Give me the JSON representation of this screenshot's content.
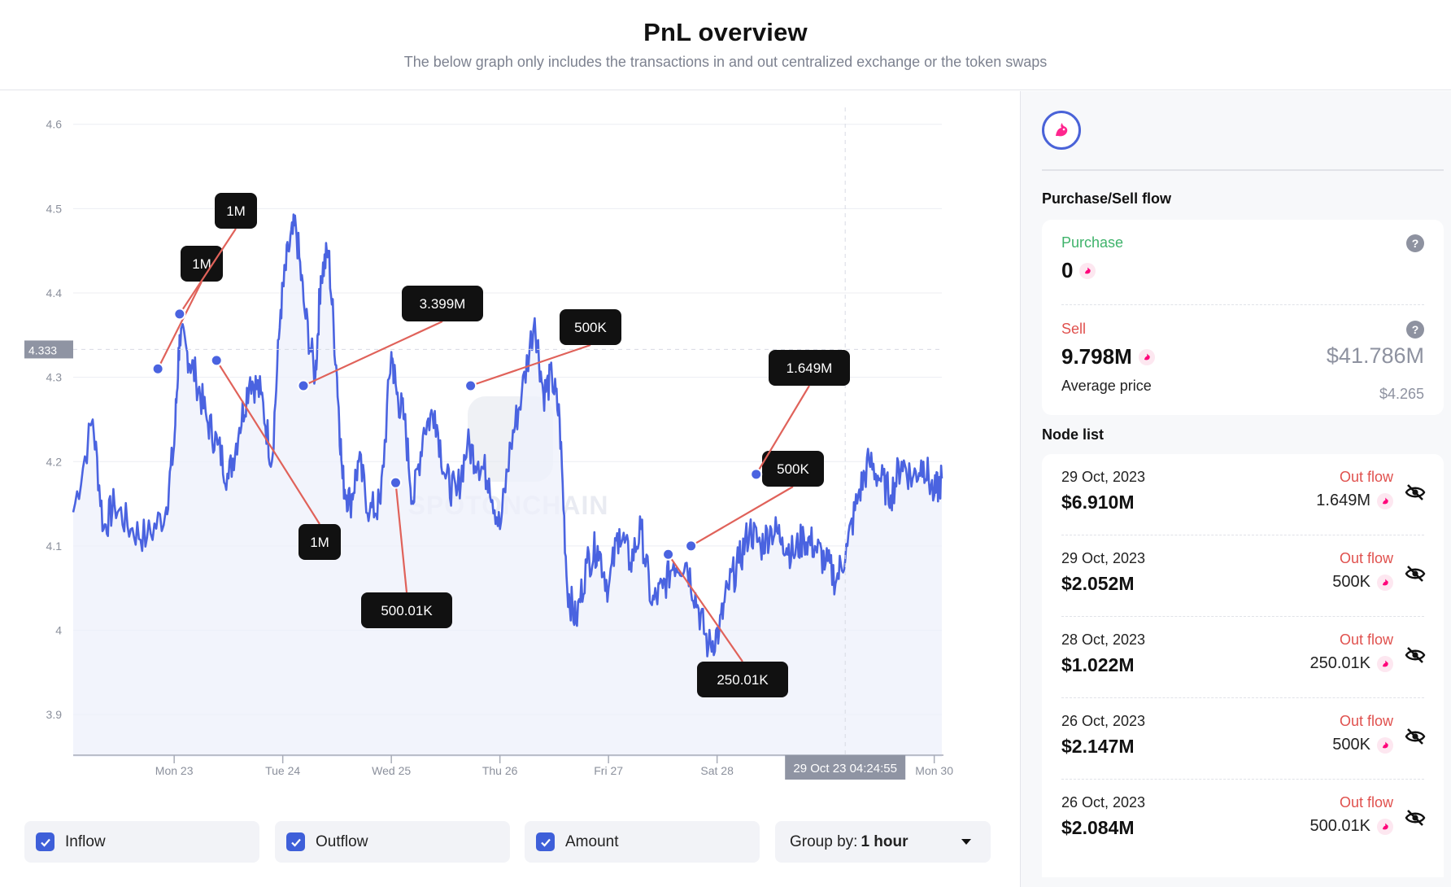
{
  "header": {
    "title": "PnL overview",
    "subtitle": "The below graph only includes the transactions in and out centralized exchange or the token swaps"
  },
  "chart_data": {
    "type": "line",
    "title": "",
    "xlabel": "",
    "ylabel": "",
    "ylim": [
      3.85,
      4.62
    ],
    "yticks": [
      3.9,
      4,
      4.1,
      4.2,
      4.3,
      4.4,
      4.5,
      4.6
    ],
    "ytick_labels": [
      "3.9",
      "4",
      "4.1",
      "4.2",
      "4.3",
      "4.4",
      "4.5",
      "4.6"
    ],
    "xticks": [
      {
        "label": "Mon 23",
        "day": 23
      },
      {
        "label": "Tue 24",
        "day": 24
      },
      {
        "label": "Wed 25",
        "day": 25
      },
      {
        "label": "Thu 26",
        "day": 26
      },
      {
        "label": "Fri 27",
        "day": 27
      },
      {
        "label": "Sat 28",
        "day": 28
      },
      {
        "label": "Mon 30",
        "day": 30
      }
    ],
    "xlim_day": [
      22.07,
      30.07
    ],
    "grid": true,
    "line_color": "#4a63e0",
    "fill_color": "#eef0fb",
    "series": [
      {
        "x_day": [
          22.07,
          22.25,
          22.35,
          22.45,
          22.6,
          22.75,
          22.92,
          23.0,
          23.05,
          23.12,
          23.2,
          23.3,
          23.4,
          23.5,
          23.6,
          23.7,
          23.8,
          23.9,
          23.98,
          24.05,
          24.12,
          24.2,
          24.3,
          24.35,
          24.42,
          24.5,
          24.55,
          24.62,
          24.7,
          24.8,
          24.9,
          25.0,
          25.05,
          25.12,
          25.2,
          25.3,
          25.4,
          25.5,
          25.6,
          25.7,
          25.8,
          25.9,
          26.0,
          26.1,
          26.2,
          26.32,
          26.4,
          26.48,
          26.55,
          26.62,
          26.7,
          26.8,
          26.9,
          27.0,
          27.1,
          27.2,
          27.3,
          27.4,
          27.5,
          27.6,
          27.72,
          27.82,
          27.92,
          28.02,
          28.1,
          28.2,
          28.3,
          28.4,
          28.5,
          28.6,
          28.7,
          28.8,
          28.9,
          29.0,
          29.1,
          29.2,
          29.3,
          29.4,
          29.5,
          29.6,
          29.7,
          29.8,
          29.9,
          30.0,
          30.07
        ],
        "y": [
          4.14,
          4.25,
          4.12,
          4.15,
          4.12,
          4.11,
          4.14,
          4.22,
          4.35,
          4.33,
          4.3,
          4.25,
          4.22,
          4.18,
          4.24,
          4.3,
          4.28,
          4.2,
          4.38,
          4.45,
          4.48,
          4.38,
          4.3,
          4.42,
          4.45,
          4.3,
          4.18,
          4.15,
          4.2,
          4.14,
          4.15,
          4.33,
          4.28,
          4.25,
          4.15,
          4.24,
          4.26,
          4.18,
          4.16,
          4.22,
          4.2,
          4.18,
          4.12,
          4.22,
          4.28,
          4.37,
          4.28,
          4.3,
          4.25,
          4.05,
          4.01,
          4.08,
          4.1,
          4.05,
          4.12,
          4.08,
          4.12,
          4.03,
          4.05,
          4.08,
          4.08,
          4.03,
          3.98,
          4.0,
          4.05,
          4.08,
          4.12,
          4.1,
          4.12,
          4.11,
          4.09,
          4.11,
          4.1,
          4.08,
          4.06,
          4.1,
          4.16,
          4.2,
          4.18,
          4.16,
          4.2,
          4.18,
          4.2,
          4.16,
          4.18
        ]
      }
    ],
    "crosshair": {
      "day": 29.18,
      "y_label": "4.333",
      "x_label": "29 Oct 23 04:24:55",
      "y": 4.333
    },
    "annotations": [
      {
        "label": "1M",
        "x_day": 22.85,
        "y": 4.31
      },
      {
        "label": "1M",
        "x_day": 23.05,
        "y": 4.375
      },
      {
        "label": "1M",
        "x_day": 23.39,
        "y": 4.32
      },
      {
        "label": "3.399M",
        "x_day": 24.19,
        "y": 4.29
      },
      {
        "label": "500.01K",
        "x_day": 25.04,
        "y": 4.175
      },
      {
        "label": "500K",
        "x_day": 25.73,
        "y": 4.29
      },
      {
        "label": "250.01K",
        "x_day": 27.55,
        "y": 4.09
      },
      {
        "label": "500K",
        "x_day": 27.76,
        "y": 4.1
      },
      {
        "label": "1.649M",
        "x_day": 28.36,
        "y": 4.185
      }
    ],
    "watermark": "SPOTONCHAIN"
  },
  "toggles": [
    {
      "label": "Inflow",
      "checked": true
    },
    {
      "label": "Outflow",
      "checked": true
    },
    {
      "label": "Amount",
      "checked": true
    }
  ],
  "group_by": {
    "label": "Group by:",
    "value": "1 hour"
  },
  "sidebar": {
    "token_icon": "uniswap-unicorn-icon",
    "flow_title": "Purchase/Sell flow",
    "purchase": {
      "label": "Purchase",
      "value": "0"
    },
    "sell": {
      "label": "Sell",
      "value": "9.798M",
      "usd": "$41.786M",
      "avg_label": "Average price",
      "avg_value": "$4.265"
    },
    "node_title": "Node list",
    "nodes": [
      {
        "date": "29 Oct, 2023",
        "value": "$6.910M",
        "flow": "Out flow",
        "amount": "1.649M"
      },
      {
        "date": "29 Oct, 2023",
        "value": "$2.052M",
        "flow": "Out flow",
        "amount": "500K"
      },
      {
        "date": "28 Oct, 2023",
        "value": "$1.022M",
        "flow": "Out flow",
        "amount": "250.01K"
      },
      {
        "date": "26 Oct, 2023",
        "value": "$2.147M",
        "flow": "Out flow",
        "amount": "500K"
      },
      {
        "date": "26 Oct, 2023",
        "value": "$2.084M",
        "flow": "Out flow",
        "amount": "500.01K"
      }
    ]
  }
}
